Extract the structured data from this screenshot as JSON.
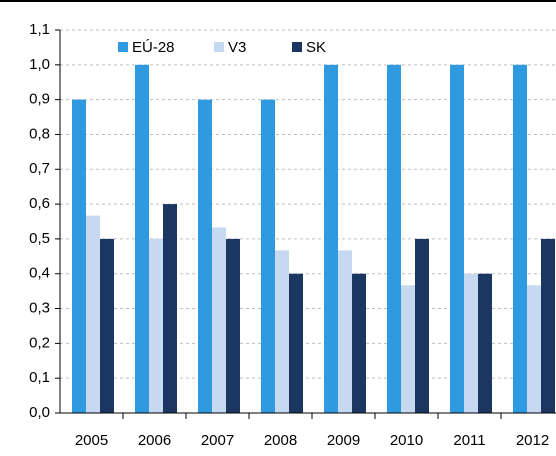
{
  "chart_data": {
    "type": "bar",
    "categories": [
      "2005",
      "2006",
      "2007",
      "2008",
      "2009",
      "2010",
      "2011",
      "2012"
    ],
    "series": [
      {
        "name": "EÚ-28",
        "color": "#2f9ae0",
        "values": [
          0.9,
          1.0,
          0.9,
          0.9,
          1.0,
          1.0,
          1.0,
          1.0
        ]
      },
      {
        "name": "V3",
        "color": "#c6d9f1",
        "values": [
          0.567,
          0.5,
          0.533,
          0.467,
          0.467,
          0.367,
          0.4,
          0.367
        ]
      },
      {
        "name": "SK",
        "color": "#1b3660",
        "values": [
          0.5,
          0.6,
          0.5,
          0.4,
          0.4,
          0.5,
          0.4,
          0.5
        ]
      }
    ],
    "ylim": [
      0,
      1.1
    ],
    "yticks": [
      {
        "value": 0,
        "label": "0,0"
      },
      {
        "value": 0.1,
        "label": "0,1"
      },
      {
        "value": 0.2,
        "label": "0,2"
      },
      {
        "value": 0.3,
        "label": "0,3"
      },
      {
        "value": 0.4,
        "label": "0,4"
      },
      {
        "value": 0.5,
        "label": "0,5"
      },
      {
        "value": 0.6,
        "label": "0,6"
      },
      {
        "value": 0.7,
        "label": "0,7"
      },
      {
        "value": 0.8,
        "label": "0,8"
      },
      {
        "value": 0.9,
        "label": "0,9"
      },
      {
        "value": 1.0,
        "label": "1,0"
      },
      {
        "value": 1.1,
        "label": "1,1"
      }
    ],
    "grid": true
  }
}
